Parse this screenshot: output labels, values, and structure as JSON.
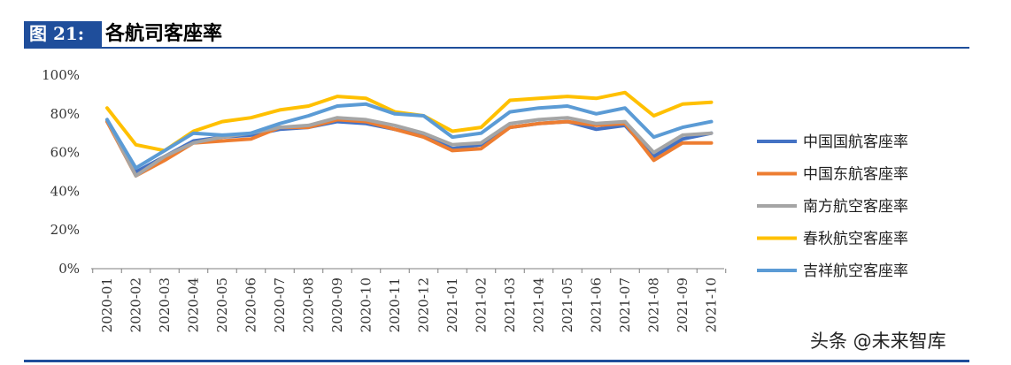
{
  "header": {
    "figure_label": "图 21:",
    "title": "各航司客座率"
  },
  "watermark": "头条 @未来智库",
  "chart_data": {
    "type": "line",
    "title": "各航司客座率",
    "xlabel": "",
    "ylabel": "",
    "ylim": [
      0,
      100
    ],
    "yticks": [
      0,
      20,
      40,
      60,
      80,
      100
    ],
    "ytick_labels": [
      "0%",
      "20%",
      "40%",
      "60%",
      "80%",
      "100%"
    ],
    "grid": false,
    "legend_position": "right",
    "categories": [
      "2020-01",
      "2020-02",
      "2020-03",
      "2020-04",
      "2020-05",
      "2020-06",
      "2020-07",
      "2020-08",
      "2020-09",
      "2020-10",
      "2020-11",
      "2020-12",
      "2021-01",
      "2021-02",
      "2021-03",
      "2021-04",
      "2021-05",
      "2021-06",
      "2021-07",
      "2021-08",
      "2021-09",
      "2021-10"
    ],
    "series": [
      {
        "name": "中国国航客座率",
        "color": "#4472c4",
        "values": [
          76,
          50,
          58,
          66,
          68,
          69,
          72,
          73,
          76,
          75,
          72,
          69,
          62,
          64,
          73,
          75,
          76,
          72,
          74,
          58,
          67,
          70
        ]
      },
      {
        "name": "中国东航客座率",
        "color": "#ed7d31",
        "values": [
          76,
          48,
          56,
          65,
          66,
          67,
          73,
          73,
          77,
          76,
          72,
          68,
          61,
          62,
          73,
          75,
          76,
          74,
          75,
          56,
          65,
          65
        ]
      },
      {
        "name": "南方航空客座率",
        "color": "#a5a5a5",
        "values": [
          77,
          48,
          58,
          65,
          68,
          70,
          73,
          74,
          78,
          77,
          74,
          70,
          64,
          65,
          75,
          77,
          78,
          75,
          76,
          60,
          69,
          70
        ]
      },
      {
        "name": "春秋航空客座率",
        "color": "#ffc000",
        "values": [
          83,
          64,
          61,
          71,
          76,
          78,
          82,
          84,
          89,
          88,
          81,
          79,
          71,
          73,
          87,
          88,
          89,
          88,
          91,
          79,
          85,
          86
        ]
      },
      {
        "name": "吉祥航空客座率",
        "color": "#5b9bd5",
        "values": [
          77,
          52,
          61,
          70,
          69,
          70,
          75,
          79,
          84,
          85,
          80,
          79,
          68,
          70,
          81,
          83,
          84,
          80,
          83,
          68,
          73,
          76
        ]
      }
    ]
  }
}
